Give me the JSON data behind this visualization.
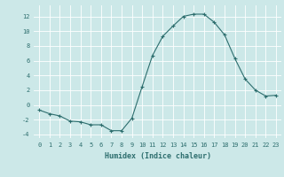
{
  "x": [
    0,
    1,
    2,
    3,
    4,
    5,
    6,
    7,
    8,
    9,
    10,
    11,
    12,
    13,
    14,
    15,
    16,
    17,
    18,
    19,
    20,
    21,
    22,
    23
  ],
  "y": [
    -0.7,
    -1.2,
    -1.5,
    -2.2,
    -2.3,
    -2.7,
    -2.7,
    -3.5,
    -3.5,
    -1.8,
    2.5,
    6.7,
    9.3,
    10.7,
    12.0,
    12.3,
    12.3,
    11.2,
    9.5,
    6.3,
    3.5,
    2.0,
    1.2,
    1.3
  ],
  "line_color": "#2d6e6e",
  "marker": "+",
  "marker_size": 3,
  "marker_lw": 0.8,
  "line_width": 0.8,
  "xlabel": "Humidex (Indice chaleur)",
  "xlim": [
    -0.5,
    23.5
  ],
  "ylim": [
    -4.5,
    13.5
  ],
  "yticks": [
    -4,
    -2,
    0,
    2,
    4,
    6,
    8,
    10,
    12
  ],
  "xticks": [
    0,
    1,
    2,
    3,
    4,
    5,
    6,
    7,
    8,
    9,
    10,
    11,
    12,
    13,
    14,
    15,
    16,
    17,
    18,
    19,
    20,
    21,
    22,
    23
  ],
  "bg_color": "#cce8e8",
  "grid_color": "#ffffff",
  "tick_color": "#2d6e6e",
  "label_color": "#2d6e6e",
  "font_family": "monospace",
  "tick_fontsize": 5.0,
  "xlabel_fontsize": 6.0
}
